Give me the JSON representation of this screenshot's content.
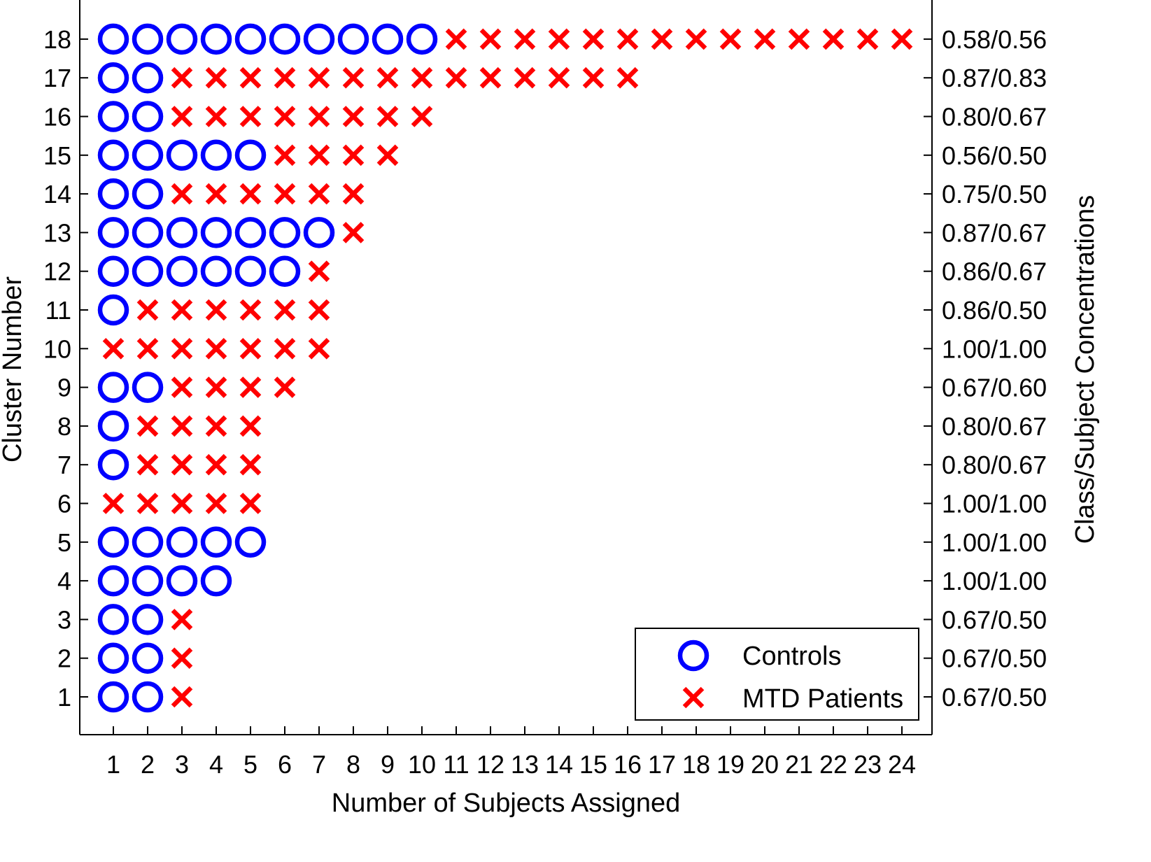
{
  "chart_data": {
    "type": "scatter",
    "xlabel": "Number of Subjects Assigned",
    "ylabel": "Cluster Number",
    "ylabel_right": "Class/Subject Concentrations",
    "x_ticks": [
      "1",
      "2",
      "3",
      "4",
      "5",
      "6",
      "7",
      "8",
      "9",
      "10",
      "11",
      "12",
      "13",
      "14",
      "15",
      "16",
      "17",
      "18",
      "19",
      "20",
      "21",
      "22",
      "23",
      "24"
    ],
    "y_ticks": [
      "1",
      "2",
      "3",
      "4",
      "5",
      "6",
      "7",
      "8",
      "9",
      "10",
      "11",
      "12",
      "13",
      "14",
      "15",
      "16",
      "17",
      "18"
    ],
    "xlim": [
      0,
      25
    ],
    "ylim": [
      0,
      19
    ],
    "grid": false,
    "legend_position": "bottom-right",
    "colors": {
      "controls": "#0000ff",
      "patients": "#ff0000",
      "axis": "#000000"
    },
    "series": [
      {
        "name": "Controls",
        "marker": "circle",
        "color": "#0000ff"
      },
      {
        "name": "MTD Patients",
        "marker": "x",
        "color": "#ff0000"
      }
    ],
    "clusters": [
      {
        "cluster": 1,
        "controls": 2,
        "patients": 1,
        "concentration": "0.67/0.50"
      },
      {
        "cluster": 2,
        "controls": 2,
        "patients": 1,
        "concentration": "0.67/0.50"
      },
      {
        "cluster": 3,
        "controls": 2,
        "patients": 1,
        "concentration": "0.67/0.50"
      },
      {
        "cluster": 4,
        "controls": 4,
        "patients": 0,
        "concentration": "1.00/1.00"
      },
      {
        "cluster": 5,
        "controls": 5,
        "patients": 0,
        "concentration": "1.00/1.00"
      },
      {
        "cluster": 6,
        "controls": 0,
        "patients": 5,
        "concentration": "1.00/1.00"
      },
      {
        "cluster": 7,
        "controls": 1,
        "patients": 4,
        "concentration": "0.80/0.67"
      },
      {
        "cluster": 8,
        "controls": 1,
        "patients": 4,
        "concentration": "0.80/0.67"
      },
      {
        "cluster": 9,
        "controls": 2,
        "patients": 4,
        "concentration": "0.67/0.60"
      },
      {
        "cluster": 10,
        "controls": 0,
        "patients": 7,
        "concentration": "1.00/1.00"
      },
      {
        "cluster": 11,
        "controls": 1,
        "patients": 6,
        "concentration": "0.86/0.50"
      },
      {
        "cluster": 12,
        "controls": 6,
        "patients": 1,
        "concentration": "0.86/0.67"
      },
      {
        "cluster": 13,
        "controls": 7,
        "patients": 1,
        "concentration": "0.87/0.67"
      },
      {
        "cluster": 14,
        "controls": 2,
        "patients": 6,
        "concentration": "0.75/0.50"
      },
      {
        "cluster": 15,
        "controls": 5,
        "patients": 4,
        "concentration": "0.56/0.50"
      },
      {
        "cluster": 16,
        "controls": 2,
        "patients": 8,
        "concentration": "0.80/0.67"
      },
      {
        "cluster": 17,
        "controls": 2,
        "patients": 14,
        "concentration": "0.87/0.83"
      },
      {
        "cluster": 18,
        "controls": 10,
        "patients": 14,
        "concentration": "0.58/0.56"
      }
    ]
  }
}
